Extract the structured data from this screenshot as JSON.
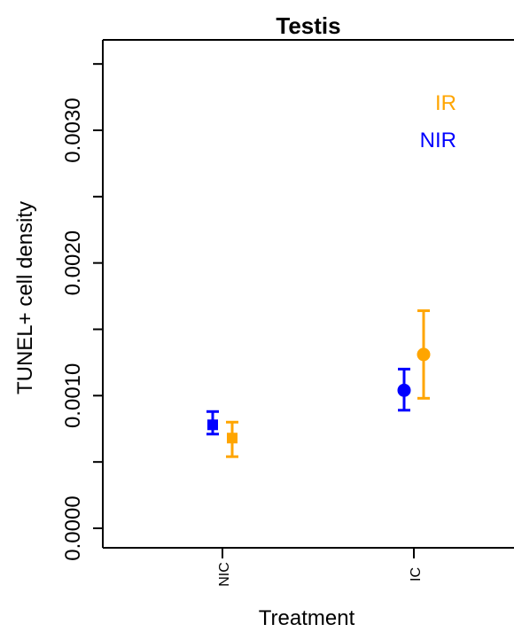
{
  "chart_data": {
    "type": "scatter",
    "title": "Testis",
    "xlabel": "Treatment",
    "ylabel": "TUNEL+ cell density",
    "categories": [
      "NIC",
      "IC"
    ],
    "yticks": [
      "0.0000",
      "0.0010",
      "0.0020",
      "0.0030"
    ],
    "ytick_values": [
      0.0,
      0.001,
      0.002,
      0.003
    ],
    "minor_ytick_values": [
      0.0005,
      0.0015,
      0.0025,
      0.0035
    ],
    "ylim": [
      -0.00015,
      0.0036
    ],
    "series": [
      {
        "name": "NIR",
        "color": "#0000ff",
        "points": [
          {
            "category": "NIC",
            "y": 0.00078,
            "low": 0.00071,
            "high": 0.00088,
            "marker": "square"
          },
          {
            "category": "IC",
            "y": 0.00104,
            "low": 0.00089,
            "high": 0.0012,
            "marker": "circle"
          }
        ]
      },
      {
        "name": "IR",
        "color": "#ffa500",
        "points": [
          {
            "category": "NIC",
            "y": 0.00068,
            "low": 0.00054,
            "high": 0.0008,
            "marker": "square"
          },
          {
            "category": "IC",
            "y": 0.00131,
            "low": 0.00098,
            "high": 0.00164,
            "marker": "circle"
          }
        ]
      }
    ],
    "legend": {
      "placement": "top-right",
      "entries": [
        {
          "label": "IR",
          "color": "#ffa500"
        },
        {
          "label": "NIR",
          "color": "#0000ff"
        }
      ]
    }
  }
}
